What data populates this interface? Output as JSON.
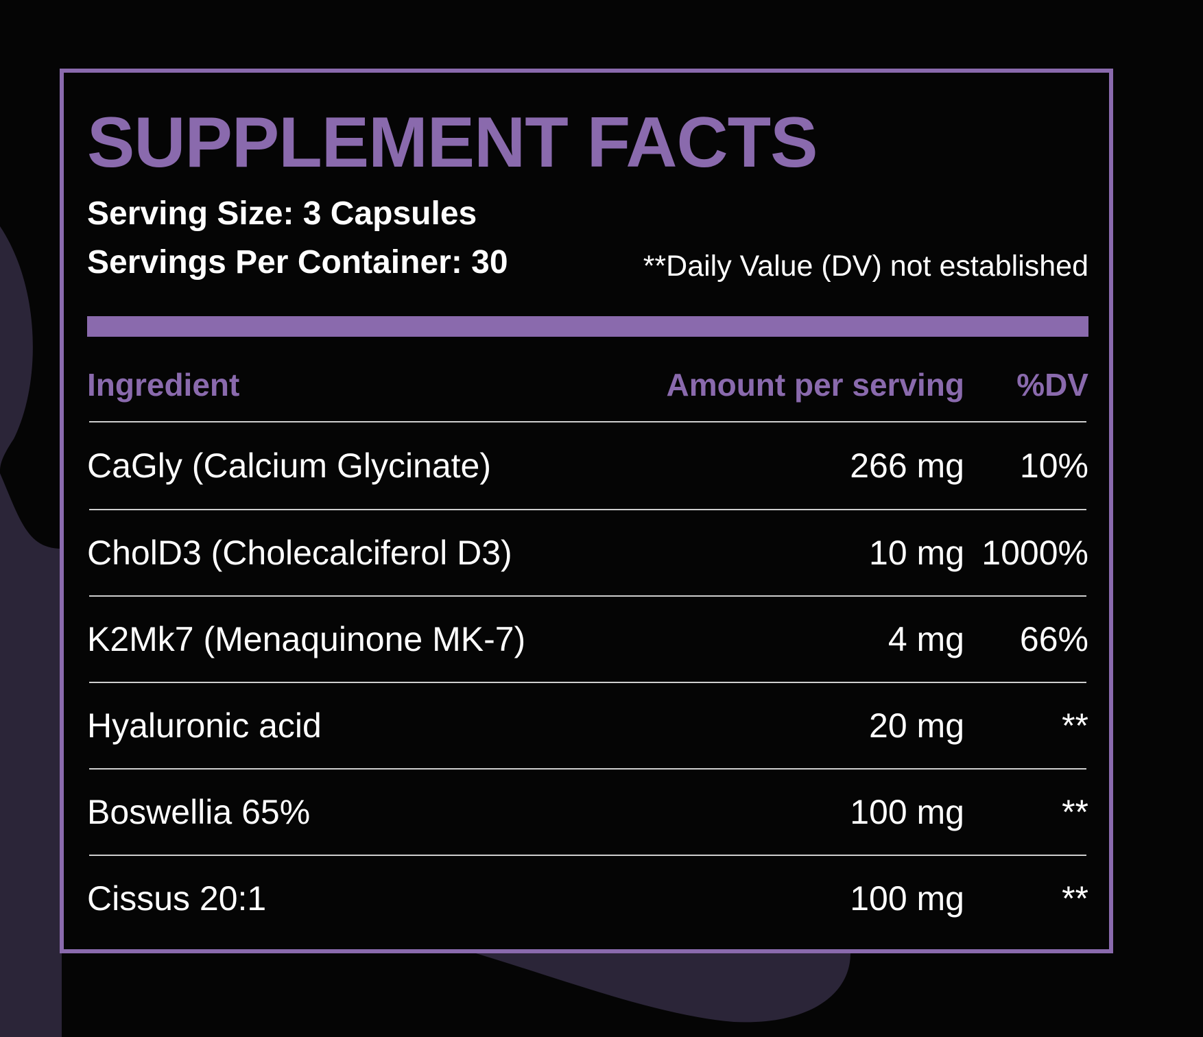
{
  "colors": {
    "background": "#050505",
    "accent": "#8a6aad",
    "decor_shape": "#2b2538",
    "text": "#ffffff",
    "rule": "#cfcfcf"
  },
  "title": "SUPPLEMENT FACTS",
  "serving_size": "Serving Size: 3 Capsules",
  "servings_per_container": "Servings Per Container: 30",
  "dv_note": "**Daily Value (DV) not established",
  "columns": {
    "ingredient": "Ingredient",
    "amount": "Amount per serving",
    "dv": "%DV"
  },
  "rows": [
    {
      "ingredient": "CaGly (Calcium Glycinate)",
      "amount": "266 mg",
      "dv": "10%"
    },
    {
      "ingredient": "CholD3 (Cholecalciferol D3)",
      "amount": "10 mg",
      "dv": "1000%"
    },
    {
      "ingredient": "K2Mk7 (Menaquinone MK-7)",
      "amount": "4 mg",
      "dv": "66%"
    },
    {
      "ingredient": "Hyaluronic acid",
      "amount": "20 mg",
      "dv": "**"
    },
    {
      "ingredient": "Boswellia 65%",
      "amount": "100 mg",
      "dv": "**"
    },
    {
      "ingredient": "Cissus 20:1",
      "amount": "100 mg",
      "dv": "**"
    }
  ]
}
